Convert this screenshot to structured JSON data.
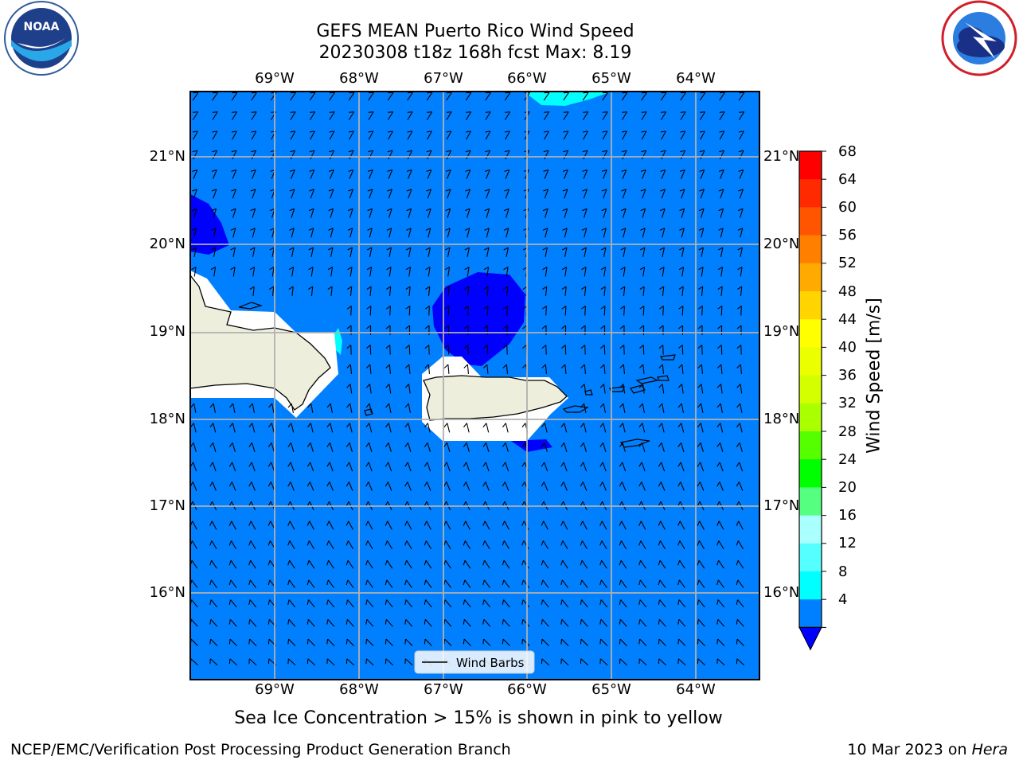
{
  "title_line1": "GEFS MEAN Puerto Rico Wind Speed",
  "title_line2": "20230308 t18z 168h fcst   Max: 8.19",
  "lon_labels": [
    "69°W",
    "68°W",
    "67°W",
    "66°W",
    "65°W",
    "64°W"
  ],
  "lat_labels": [
    "21°N",
    "20°N",
    "19°N",
    "18°N",
    "17°N",
    "16°N"
  ],
  "colorbar": {
    "title": "Wind Speed [m/s]",
    "ticks": [
      "68",
      "64",
      "60",
      "56",
      "52",
      "48",
      "44",
      "40",
      "36",
      "32",
      "28",
      "24",
      "20",
      "16",
      "12",
      "8",
      "4"
    ],
    "colors": [
      "#ff0000",
      "#ff2a00",
      "#ff5500",
      "#ff8000",
      "#ffaa00",
      "#ffd400",
      "#ffff00",
      "#ecff00",
      "#d4ff00",
      "#aaff00",
      "#55ff00",
      "#00ff00",
      "#55ff80",
      "#aaffff",
      "#55ffff",
      "#00ffff",
      "#0080ff"
    ],
    "extend_color": "#0000ff"
  },
  "legend_label": "Wind Barbs",
  "subnote": "Sea Ice Concentration > 15% is shown in pink to yellow",
  "footer_left": "NCEP/EMC/Verification Post Processing Product Generation Branch",
  "footer_date": "10 Mar 2023 on ",
  "footer_host": "Hera",
  "logos": {
    "left": "NOAA",
    "right": "NATIONAL WEATHER SERVICE"
  },
  "colors": {
    "sea": "#0080ff",
    "land": "#eeeedd",
    "strong": "#0000ff",
    "light": "#00ffff"
  }
}
